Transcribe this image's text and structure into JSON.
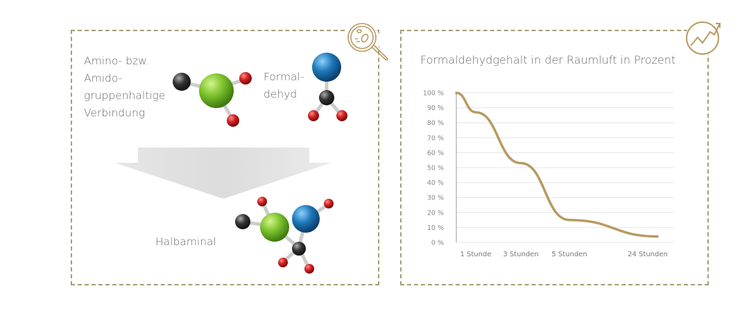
{
  "diagram": {
    "reactant1_lines": [
      "Amino- bzw.",
      "Amido-",
      "gruppenhaltige",
      "Verbindung"
    ],
    "reactant2_lines": [
      "Formal-",
      "dehyd"
    ],
    "product": "Halbaminal",
    "icon": "magnifier-bacteria-icon",
    "atom_colors": {
      "green": "#7cc22c",
      "blue": "#1d78b8",
      "red": "#d02020",
      "black": "#333333"
    }
  },
  "chart_data": {
    "type": "line",
    "title": "Formaldehydgehalt in der Raumluft in Prozent",
    "icon": "trend-chart-icon",
    "x_tick_labels": [
      "1 Stunde",
      "3 Stunden",
      "5 Stunden",
      "24 Stunden"
    ],
    "y_tick_labels": [
      "0 %",
      "10 %",
      "20 %",
      "30 %",
      "40 %",
      "50 %",
      "60 %",
      "70 %",
      "80 %",
      "90 %",
      "100 %"
    ],
    "ylim": [
      0,
      100
    ],
    "grid": true,
    "series": [
      {
        "color": "#b89a60",
        "points": [
          {
            "x": "Start",
            "y": 100
          },
          {
            "x": "1 Stunde",
            "y": 87
          },
          {
            "x": "3 Stunden",
            "y": 53
          },
          {
            "x": "5 Stunden",
            "y": 15
          },
          {
            "x": "24 Stunden",
            "y": 4
          }
        ]
      }
    ]
  }
}
